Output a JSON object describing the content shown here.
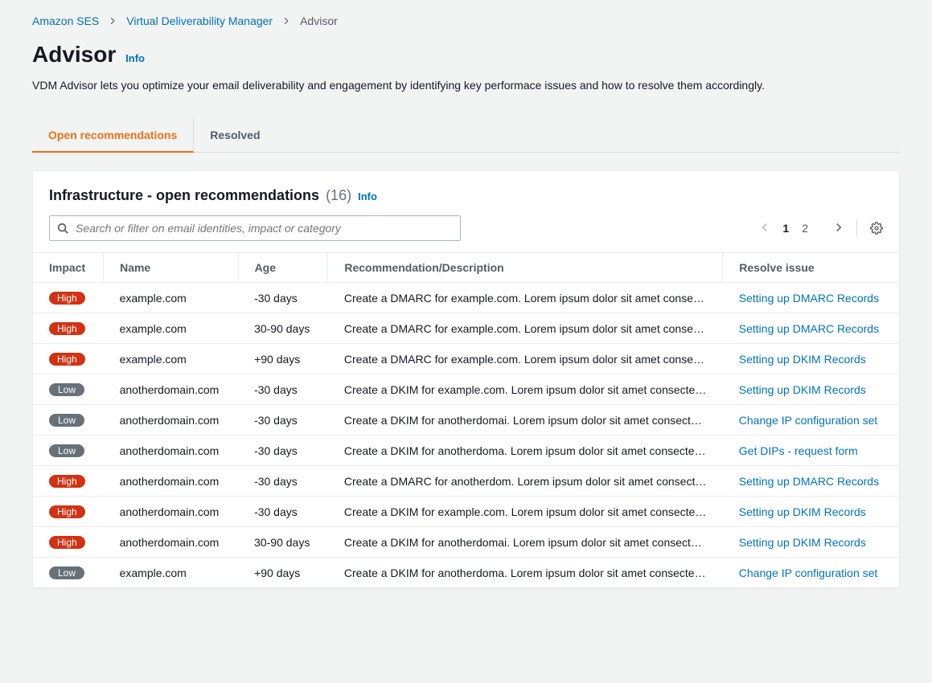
{
  "breadcrumb": {
    "items": [
      {
        "label": "Amazon SES",
        "link": true
      },
      {
        "label": "Virtual Deliverability Manager",
        "link": true
      },
      {
        "label": "Advisor",
        "link": false
      }
    ]
  },
  "header": {
    "title": "Advisor",
    "info": "Info",
    "description": "VDM Advisor lets you optimize your email deliverability and engagement by identifying key performace issues and how to resolve them accordingly."
  },
  "tabs": {
    "items": [
      {
        "label": "Open recommendations",
        "active": true
      },
      {
        "label": "Resolved",
        "active": false
      }
    ]
  },
  "panel": {
    "title": "Infrastructure - open recommendations",
    "count": "(16)",
    "info": "Info"
  },
  "search": {
    "placeholder": "Search or filter on email identities, impact or category"
  },
  "pagination": {
    "pages": [
      "1",
      "2"
    ],
    "current": "1"
  },
  "table": {
    "columns": [
      "Impact",
      "Name",
      "Age",
      "Recommendation/Description",
      "Resolve issue"
    ],
    "rows": [
      {
        "impact": "High",
        "impact_level": "high",
        "name": "example.com",
        "age": "-30 days",
        "desc": "Create a DMARC for example.com. Lorem ipsum dolor sit amet consectetur...",
        "resolve": "Setting up DMARC Records"
      },
      {
        "impact": "High",
        "impact_level": "high",
        "name": "example.com",
        "age": "30-90 days",
        "desc": "Create a DMARC for example.com. Lorem ipsum dolor sit amet consectetur...",
        "resolve": "Setting up DMARC Records"
      },
      {
        "impact": "High",
        "impact_level": "high",
        "name": "example.com",
        "age": "+90 days",
        "desc": "Create a DMARC for example.com. Lorem ipsum dolor sit amet consectetur...",
        "resolve": "Setting up DKIM Records"
      },
      {
        "impact": "Low",
        "impact_level": "low",
        "name": "anotherdomain.com",
        "age": "-30 days",
        "desc": "Create a DKIM for example.com. Lorem ipsum dolor sit amet consectetur...",
        "resolve": "Setting up DKIM Records"
      },
      {
        "impact": "Low",
        "impact_level": "low",
        "name": "anotherdomain.com",
        "age": "-30 days",
        "desc": "Create a DKIM for anotherdomai. Lorem ipsum dolor sit amet consectetur...",
        "resolve": "Change IP configuration set"
      },
      {
        "impact": "Low",
        "impact_level": "low",
        "name": "anotherdomain.com",
        "age": "-30 days",
        "desc": "Create a DKIM for anotherdoma. Lorem ipsum dolor sit amet consectetur...",
        "resolve": "Get DIPs - request form"
      },
      {
        "impact": "High",
        "impact_level": "high",
        "name": "anotherdomain.com",
        "age": "-30 days",
        "desc": "Create a DMARC for anotherdom. Lorem ipsum dolor sit amet consectetur...",
        "resolve": "Setting up DMARC Records"
      },
      {
        "impact": "High",
        "impact_level": "high",
        "name": "anotherdomain.com",
        "age": "-30 days",
        "desc": "Create a DKIM for example.com. Lorem ipsum dolor sit amet consectetur...",
        "resolve": "Setting up DKIM Records"
      },
      {
        "impact": "High",
        "impact_level": "high",
        "name": "anotherdomain.com",
        "age": "30-90 days",
        "desc": "Create a DKIM for anotherdomai. Lorem ipsum dolor sit amet consectetur...",
        "resolve": "Setting up DKIM Records"
      },
      {
        "impact": "Low",
        "impact_level": "low",
        "name": "example.com",
        "age": "+90 days",
        "desc": "Create a DKIM for anotherdoma. Lorem ipsum dolor sit amet consectetur...",
        "resolve": "Change IP configuration set"
      }
    ]
  },
  "colors": {
    "link": "#0073bb",
    "accent": "#ec7211",
    "badge_high": "#d13212",
    "badge_low": "#687078",
    "background": "#f2f3f3",
    "panel_bg": "#ffffff",
    "border": "#eaeded"
  }
}
